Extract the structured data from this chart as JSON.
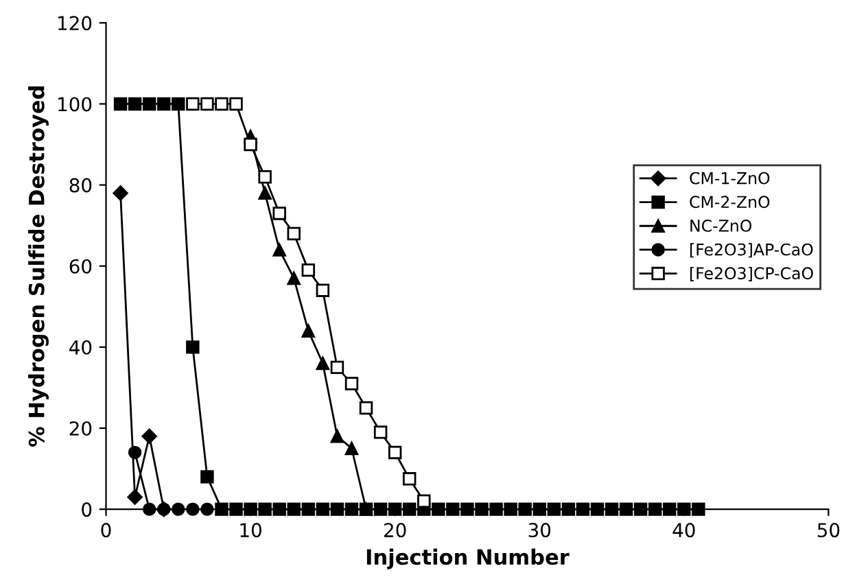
{
  "chart_data": {
    "type": "line",
    "xlabel": "Injection Number",
    "ylabel": "% Hydrogen Sulfide Destroyed",
    "series": [
      {
        "name": "CM-1-ZnO",
        "color": "#000000",
        "marker": "diamond",
        "x": [
          1,
          2,
          3,
          4
        ],
        "values": [
          78,
          3,
          18,
          0
        ]
      },
      {
        "name": "CM-2-ZnO",
        "color": "#000000",
        "marker": "square",
        "x": [
          1,
          2,
          3,
          4,
          5,
          6,
          7,
          8,
          9,
          10,
          11,
          12,
          13,
          14,
          15,
          16,
          17,
          18,
          19,
          20,
          21,
          22,
          23,
          24,
          25,
          26,
          27,
          28,
          29,
          30,
          31,
          32,
          33,
          34,
          35,
          36,
          37,
          38,
          39,
          40,
          41
        ],
        "values": [
          100,
          100,
          100,
          100,
          100,
          40,
          8,
          0,
          0,
          0,
          0,
          0,
          0,
          0,
          0,
          0,
          0,
          0,
          0,
          0,
          0,
          0,
          0,
          0,
          0,
          0,
          0,
          0,
          0,
          0,
          0,
          0,
          0,
          0,
          0,
          0,
          0,
          0,
          0,
          0,
          0
        ]
      },
      {
        "name": "NC-ZnO",
        "color": "#000000",
        "marker": "triangle",
        "x": [
          10,
          11,
          12,
          13,
          14,
          15,
          16,
          17,
          18
        ],
        "values": [
          92,
          78,
          64,
          57,
          44,
          36,
          18,
          15,
          0
        ]
      },
      {
        "name": "[Fe2O3]AP-CaO",
        "color": "#000000",
        "marker": "circle",
        "x": [
          2,
          3,
          4,
          5,
          6,
          7
        ],
        "values": [
          14,
          0,
          0,
          0,
          0,
          0
        ]
      },
      {
        "name": "[Fe2O3]CP-CaO",
        "color": "#000000",
        "marker": "square",
        "x": [
          6,
          7,
          8,
          9,
          10,
          11,
          12,
          13,
          14,
          15,
          16,
          17,
          18,
          19,
          20,
          21,
          22
        ],
        "values": [
          100,
          100,
          100,
          100,
          90,
          82,
          73,
          68,
          59,
          54,
          35,
          31,
          25,
          19,
          14,
          7.5,
          2
        ]
      }
    ],
    "xlim": [
      0,
      50
    ],
    "xticks": [
      0,
      10,
      20,
      30,
      40,
      50
    ],
    "ylim": [
      0,
      120
    ],
    "yticks": [
      0,
      20,
      40,
      60,
      80,
      100,
      120
    ],
    "grid": false,
    "legend": "right",
    "line_style": "solid"
  }
}
